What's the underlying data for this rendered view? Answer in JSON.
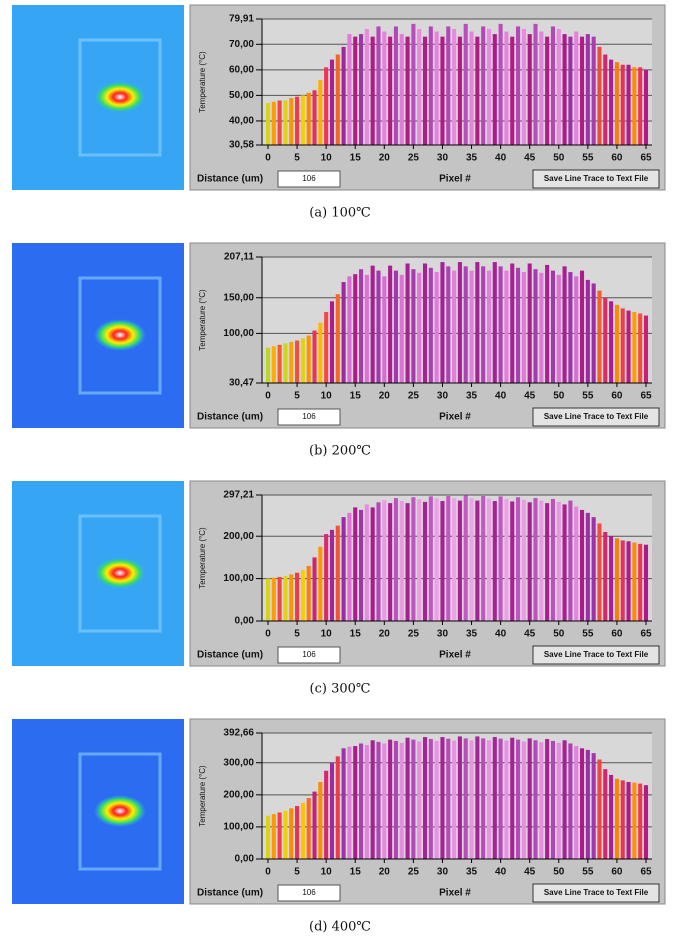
{
  "chart_data": [
    {
      "type": "bar",
      "y_label": "Temperature (°C)",
      "x_label": "Pixel #",
      "xlim": [
        0,
        65
      ],
      "xticks": [
        0,
        5,
        10,
        15,
        20,
        25,
        30,
        35,
        40,
        45,
        50,
        55,
        60,
        65
      ],
      "ylim": [
        30.58,
        79.91
      ],
      "yticks": [
        {
          "value": 30.58,
          "label": "30,58"
        },
        {
          "value": 40,
          "label": "40,00"
        },
        {
          "value": 50,
          "label": "50,00"
        },
        {
          "value": 60,
          "label": "60,00"
        },
        {
          "value": 70,
          "label": "70,00"
        },
        {
          "value": 79.91,
          "label": "79,91"
        }
      ],
      "grid": true,
      "colorscale": [
        "#33dd33",
        "#99e033",
        "#ffcc00",
        "#ff8800",
        "#ee3355",
        "#b0178a",
        "#9b2fa8",
        "#e070d8",
        "#f8c8f4"
      ],
      "x": [
        0,
        1,
        2,
        3,
        4,
        5,
        6,
        7,
        8,
        9,
        10,
        11,
        12,
        13,
        14,
        15,
        16,
        17,
        18,
        19,
        20,
        21,
        22,
        23,
        24,
        25,
        26,
        27,
        28,
        29,
        30,
        31,
        32,
        33,
        34,
        35,
        36,
        37,
        38,
        39,
        40,
        41,
        42,
        43,
        44,
        45,
        46,
        47,
        48,
        49,
        50,
        51,
        52,
        53,
        54,
        55,
        56,
        57,
        58,
        59,
        60,
        61,
        62,
        63,
        64,
        65
      ],
      "values": [
        47,
        47.5,
        48,
        48,
        49,
        49.5,
        50,
        51,
        52,
        56,
        61,
        64,
        66,
        69,
        74,
        73,
        74,
        76,
        73,
        77,
        75,
        73,
        77,
        74,
        73,
        78,
        76,
        73,
        77,
        75,
        73,
        77,
        76,
        73,
        78,
        75,
        73,
        77,
        76,
        74,
        78,
        75,
        73,
        77,
        76,
        74,
        78,
        75,
        73,
        77,
        76,
        74,
        73,
        75,
        73,
        74,
        73,
        69,
        66,
        64,
        63,
        62,
        62,
        61,
        61,
        60
      ]
    },
    {
      "type": "bar",
      "y_label": "Temperature (°C)",
      "x_label": "Pixel #",
      "xlim": [
        0,
        65
      ],
      "xticks": [
        0,
        5,
        10,
        15,
        20,
        25,
        30,
        35,
        40,
        45,
        50,
        55,
        60,
        65
      ],
      "ylim": [
        30.47,
        207.11
      ],
      "yticks": [
        {
          "value": 30.47,
          "label": "30,47"
        },
        {
          "value": 100,
          "label": "100,00"
        },
        {
          "value": 150,
          "label": "150,00"
        },
        {
          "value": 207.11,
          "label": "207,11"
        }
      ],
      "grid": true,
      "colorscale": [
        "#33dd33",
        "#99e033",
        "#ffcc00",
        "#ff8800",
        "#ee3355",
        "#b0178a",
        "#9b2fa8",
        "#e070d8",
        "#f8c8f4"
      ],
      "x": [
        0,
        1,
        2,
        3,
        4,
        5,
        6,
        7,
        8,
        9,
        10,
        11,
        12,
        13,
        14,
        15,
        16,
        17,
        18,
        19,
        20,
        21,
        22,
        23,
        24,
        25,
        26,
        27,
        28,
        29,
        30,
        31,
        32,
        33,
        34,
        35,
        36,
        37,
        38,
        39,
        40,
        41,
        42,
        43,
        44,
        45,
        46,
        47,
        48,
        49,
        50,
        51,
        52,
        53,
        54,
        55,
        56,
        57,
        58,
        59,
        60,
        61,
        62,
        63,
        64,
        65
      ],
      "values": [
        80,
        82,
        84,
        86,
        88,
        90,
        93,
        97,
        104,
        115,
        130,
        145,
        155,
        172,
        180,
        183,
        190,
        182,
        195,
        188,
        180,
        195,
        188,
        182,
        198,
        190,
        185,
        198,
        192,
        186,
        200,
        194,
        188,
        200,
        194,
        188,
        200,
        194,
        188,
        200,
        194,
        188,
        198,
        192,
        186,
        198,
        190,
        185,
        196,
        188,
        182,
        194,
        186,
        180,
        188,
        175,
        170,
        160,
        150,
        145,
        140,
        135,
        132,
        130,
        128,
        125
      ]
    },
    {
      "type": "bar",
      "y_label": "Temperature (°C)",
      "x_label": "Pixel #",
      "xlim": [
        0,
        65
      ],
      "xticks": [
        0,
        5,
        10,
        15,
        20,
        25,
        30,
        35,
        40,
        45,
        50,
        55,
        60,
        65
      ],
      "ylim": [
        0,
        297.21
      ],
      "yticks": [
        {
          "value": 0,
          "label": "0,00"
        },
        {
          "value": 100,
          "label": "100,00"
        },
        {
          "value": 200,
          "label": "200,00"
        },
        {
          "value": 297.21,
          "label": "297,21"
        }
      ],
      "grid": true,
      "colorscale": [
        "#33dd33",
        "#99e033",
        "#ffcc00",
        "#ff8800",
        "#ee3355",
        "#b0178a",
        "#9b2fa8",
        "#e070d8",
        "#f8c8f4"
      ],
      "x": [
        0,
        1,
        2,
        3,
        4,
        5,
        6,
        7,
        8,
        9,
        10,
        11,
        12,
        13,
        14,
        15,
        16,
        17,
        18,
        19,
        20,
        21,
        22,
        23,
        24,
        25,
        26,
        27,
        28,
        29,
        30,
        31,
        32,
        33,
        34,
        35,
        36,
        37,
        38,
        39,
        40,
        41,
        42,
        43,
        44,
        45,
        46,
        47,
        48,
        49,
        50,
        51,
        52,
        53,
        54,
        55,
        56,
        57,
        58,
        59,
        60,
        61,
        62,
        63,
        64,
        65
      ],
      "values": [
        100,
        102,
        104,
        106,
        110,
        114,
        120,
        130,
        150,
        175,
        205,
        215,
        225,
        245,
        255,
        268,
        262,
        275,
        268,
        280,
        285,
        278,
        290,
        283,
        278,
        292,
        287,
        281,
        294,
        289,
        283,
        295,
        290,
        284,
        296,
        290,
        284,
        295,
        289,
        283,
        294,
        288,
        282,
        292,
        286,
        280,
        290,
        284,
        278,
        288,
        281,
        275,
        284,
        270,
        262,
        255,
        245,
        230,
        210,
        200,
        195,
        190,
        188,
        185,
        182,
        180
      ]
    },
    {
      "type": "bar",
      "y_label": "Temperature (°C)",
      "x_label": "Pixel #",
      "xlim": [
        0,
        65
      ],
      "xticks": [
        0,
        5,
        10,
        15,
        20,
        25,
        30,
        35,
        40,
        45,
        50,
        55,
        60,
        65
      ],
      "ylim": [
        0,
        392.66
      ],
      "yticks": [
        {
          "value": 0,
          "label": "0,00"
        },
        {
          "value": 100,
          "label": "100,00"
        },
        {
          "value": 200,
          "label": "200,00"
        },
        {
          "value": 300,
          "label": "300,00"
        },
        {
          "value": 392.66,
          "label": "392,66"
        }
      ],
      "grid": true,
      "colorscale": [
        "#33dd33",
        "#99e033",
        "#ffcc00",
        "#ff8800",
        "#ee3355",
        "#b0178a",
        "#9b2fa8",
        "#e070d8",
        "#f8c8f4"
      ],
      "x": [
        0,
        1,
        2,
        3,
        4,
        5,
        6,
        7,
        8,
        9,
        10,
        11,
        12,
        13,
        14,
        15,
        16,
        17,
        18,
        19,
        20,
        21,
        22,
        23,
        24,
        25,
        26,
        27,
        28,
        29,
        30,
        31,
        32,
        33,
        34,
        35,
        36,
        37,
        38,
        39,
        40,
        41,
        42,
        43,
        44,
        45,
        46,
        47,
        48,
        49,
        50,
        51,
        52,
        53,
        54,
        55,
        56,
        57,
        58,
        59,
        60,
        61,
        62,
        63,
        64,
        65
      ],
      "values": [
        135,
        140,
        145,
        150,
        158,
        165,
        175,
        190,
        210,
        240,
        275,
        300,
        320,
        345,
        350,
        352,
        360,
        355,
        370,
        365,
        360,
        372,
        368,
        362,
        378,
        372,
        366,
        380,
        374,
        368,
        380,
        375,
        369,
        382,
        376,
        370,
        382,
        376,
        370,
        380,
        375,
        369,
        378,
        372,
        366,
        376,
        370,
        364,
        374,
        368,
        362,
        370,
        360,
        352,
        345,
        340,
        330,
        310,
        280,
        262,
        250,
        245,
        240,
        238,
        235,
        230
      ]
    }
  ],
  "panels": [
    {
      "caption": "(a)  100℃",
      "distance_label": "Distance (um)",
      "distance_value": "106",
      "button": "Save Line Trace to Text File"
    },
    {
      "caption": "(b)  200℃",
      "distance_label": "Distance (um)",
      "distance_value": "106",
      "button": "Save Line Trace to Text File"
    },
    {
      "caption": "(c)  300℃",
      "distance_label": "Distance (um)",
      "distance_value": "106",
      "button": "Save Line Trace to Text File"
    },
    {
      "caption": "(d)  400℃",
      "distance_label": "Distance (um)",
      "distance_value": "106",
      "button": "Save Line Trace to Text File"
    }
  ]
}
